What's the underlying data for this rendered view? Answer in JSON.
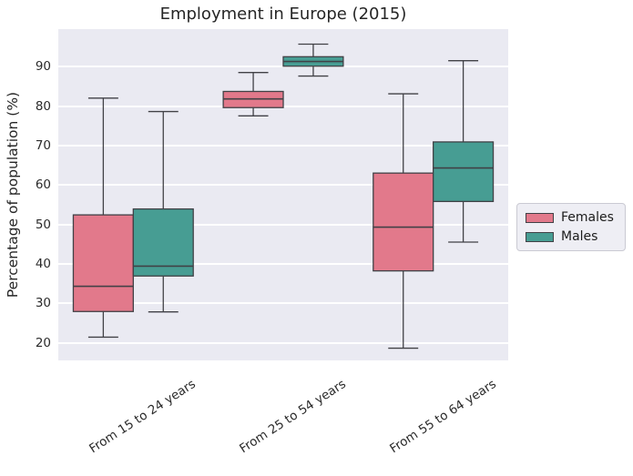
{
  "chart_data": {
    "type": "boxplot",
    "title": "Employment in Europe (2015)",
    "ylabel": "Percentage of population (%)",
    "xlabel": "",
    "categories": [
      "From 15 to 24 years",
      "From 25 to 54 years",
      "From 55 to 64 years"
    ],
    "y_ticks": [
      20,
      30,
      40,
      50,
      60,
      70,
      80,
      90
    ],
    "ylim": [
      15.5,
      99.5
    ],
    "grid": true,
    "legend": {
      "position": "right-outside",
      "entries": [
        "Females",
        "Males"
      ]
    },
    "series": [
      {
        "name": "Females",
        "color": "#e2798b",
        "boxes": [
          {
            "whislo": 21.4,
            "q1": 27.9,
            "med": 34.3,
            "q3": 52.4,
            "whishi": 82.0
          },
          {
            "whislo": 77.5,
            "q1": 79.6,
            "med": 81.8,
            "q3": 83.7,
            "whishi": 88.5
          },
          {
            "whislo": 18.6,
            "q1": 38.2,
            "med": 49.3,
            "q3": 63.0,
            "whishi": 83.1
          }
        ]
      },
      {
        "name": "Males",
        "color": "#479d93",
        "boxes": [
          {
            "whislo": 27.8,
            "q1": 36.9,
            "med": 39.4,
            "q3": 53.9,
            "whishi": 78.6
          },
          {
            "whislo": 87.6,
            "q1": 90.1,
            "med": 91.3,
            "q3": 92.5,
            "whishi": 95.7
          },
          {
            "whislo": 45.5,
            "q1": 55.8,
            "med": 64.3,
            "q3": 70.9,
            "whishi": 91.5
          }
        ]
      }
    ]
  },
  "colors": {
    "plot_bg": "#eaeaf2",
    "gridline": "#ffffff",
    "box_edge": "#414146",
    "title_text": "#262626",
    "tick_text": "#2b2b2b",
    "legend_bg": "#eeeef4",
    "legend_border": "#cacad3"
  }
}
